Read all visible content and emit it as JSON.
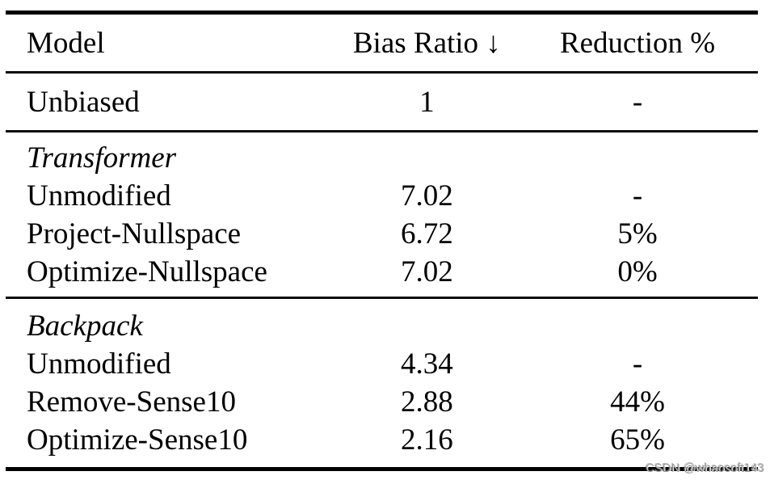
{
  "table": {
    "columns": [
      "Model",
      "Bias Ratio ↓",
      "Reduction %"
    ],
    "baseline": {
      "model": "Unbiased",
      "bias_ratio": "1",
      "reduction": "-"
    },
    "sections": [
      {
        "group": "Transformer",
        "rows": [
          {
            "model": "Unmodified",
            "bias_ratio": "7.02",
            "reduction": "-"
          },
          {
            "model": "Project-Nullspace",
            "bias_ratio": "6.72",
            "reduction": "5%"
          },
          {
            "model": "Optimize-Nullspace",
            "bias_ratio": "7.02",
            "reduction": "0%"
          }
        ]
      },
      {
        "group": "Backpack",
        "rows": [
          {
            "model": "Unmodified",
            "bias_ratio": "4.34",
            "reduction": "-"
          },
          {
            "model": "Remove-Sense10",
            "bias_ratio": "2.88",
            "reduction": "44%"
          },
          {
            "model": "Optimize-Sense10",
            "bias_ratio": "2.16",
            "reduction": "65%"
          }
        ]
      }
    ]
  },
  "watermark": "CSDN @whaosoft143",
  "colors": {
    "text": "#000000",
    "rule": "#0c0c0c",
    "watermark": "#9b9b9b",
    "background": "#ffffff"
  }
}
